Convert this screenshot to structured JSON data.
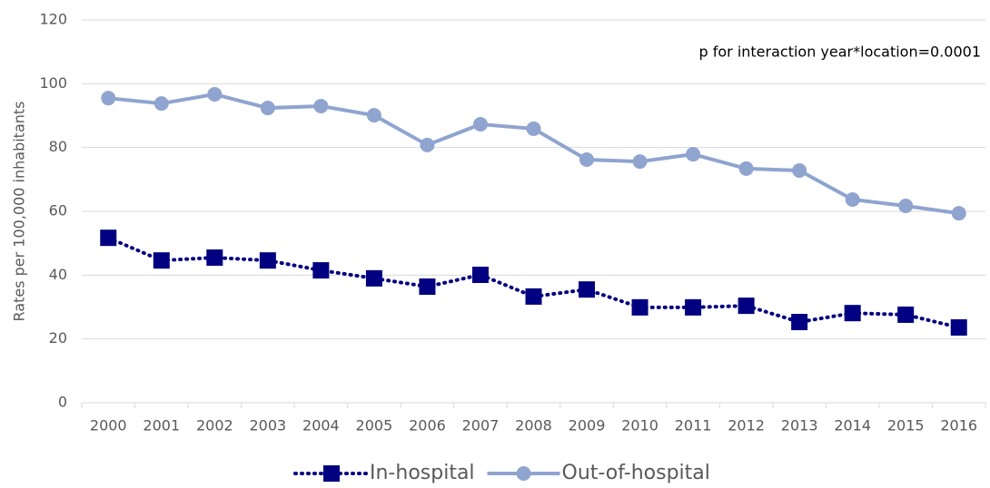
{
  "chart_data": {
    "type": "line",
    "y_label": "Rates per 100,000 inhabitants",
    "annotation": "p for interaction year*location=0.0001",
    "categories": [
      "2000",
      "2001",
      "2002",
      "2003",
      "2004",
      "2005",
      "2006",
      "2007",
      "2008",
      "2009",
      "2010",
      "2011",
      "2012",
      "2013",
      "2014",
      "2015",
      "2016"
    ],
    "series": [
      {
        "name": "In-hospital",
        "color": "#000080",
        "marker": "square",
        "dash": "dotted",
        "values": [
          51.7,
          44.6,
          45.5,
          44.6,
          41.5,
          39.0,
          36.4,
          40.1,
          33.3,
          35.5,
          29.9,
          29.9,
          30.4,
          25.3,
          28.1,
          27.6,
          23.6
        ]
      },
      {
        "name": "Out-of-hospital",
        "color": "#8fa4cf",
        "marker": "circle",
        "dash": "solid",
        "values": [
          95.5,
          93.8,
          96.7,
          92.4,
          93.0,
          90.1,
          80.8,
          87.3,
          85.9,
          76.2,
          75.6,
          77.9,
          73.4,
          72.8,
          63.7,
          61.7,
          59.4
        ]
      }
    ],
    "ylim": [
      0,
      120
    ],
    "yticks": [
      0,
      20,
      40,
      60,
      80,
      100,
      120
    ],
    "grid": true,
    "legend": "bottom"
  }
}
